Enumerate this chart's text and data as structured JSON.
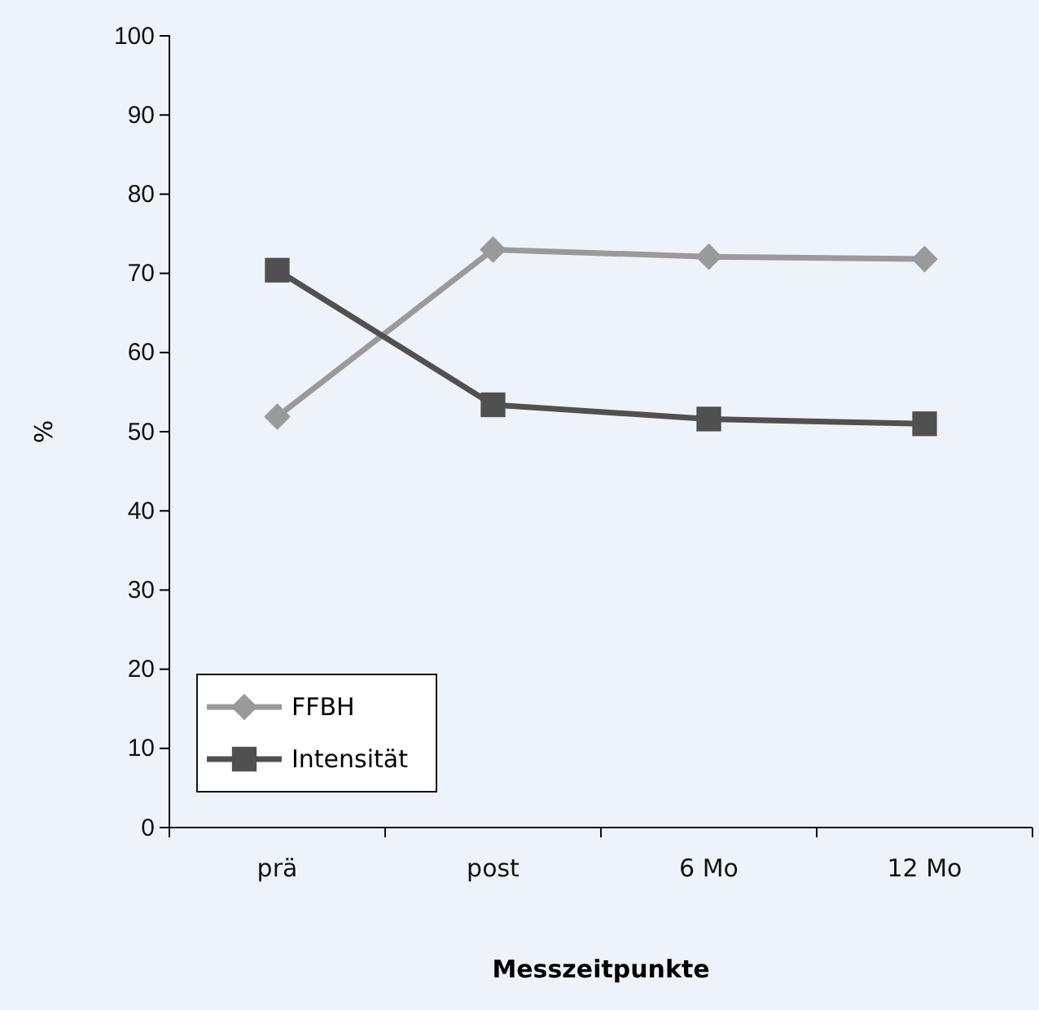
{
  "chart_data": {
    "type": "line",
    "ylabel": "%",
    "xlabel": "Messzeitpunkte",
    "categories": [
      "prä",
      "post",
      "6 Mo",
      "12 Mo"
    ],
    "series": [
      {
        "name": "FFBH",
        "color": "#9a9a9a",
        "marker": "diamond",
        "values": [
          51.9,
          73.0,
          72.1,
          71.8
        ]
      },
      {
        "name": "Intensität",
        "color": "#505050",
        "marker": "square",
        "values": [
          70.4,
          53.4,
          51.6,
          51.0
        ]
      }
    ],
    "ylim": [
      0,
      100
    ],
    "yticks": [
      0,
      10,
      20,
      30,
      40,
      50,
      60,
      70,
      80,
      90,
      100
    ],
    "grid": false,
    "legend": "bottom left",
    "line_style": "solid"
  }
}
